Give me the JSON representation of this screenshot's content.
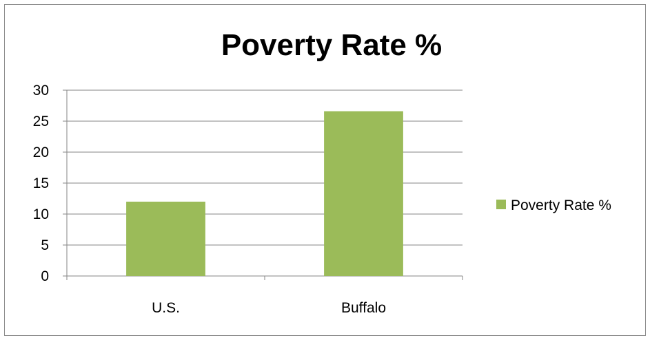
{
  "chart_data": {
    "type": "bar",
    "title": "Poverty Rate %",
    "categories": [
      "U.S.",
      "Buffalo"
    ],
    "series": [
      {
        "name": "Poverty Rate %",
        "values": [
          12,
          26.6
        ]
      }
    ],
    "ylim": [
      0,
      30
    ],
    "yticks": [
      0,
      5,
      10,
      15,
      20,
      25,
      30
    ],
    "grid": true,
    "legend": "right",
    "bar_color": "#9bbb59"
  }
}
